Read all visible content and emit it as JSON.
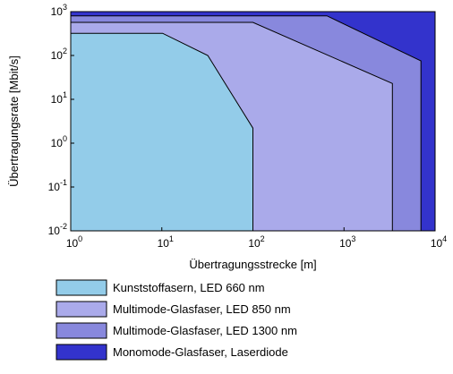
{
  "chart_data": {
    "type": "area",
    "xlabel": "Übertragungsstrecke [m]",
    "ylabel": "Übertragungsrate [Mbit/s]",
    "x_scale": "log",
    "y_scale": "log",
    "xlim": [
      1,
      10000
    ],
    "ylim": [
      0.01,
      1000
    ],
    "x_ticks": [
      {
        "value": 1,
        "base": "10",
        "exp": "0"
      },
      {
        "value": 10,
        "base": "10",
        "exp": "1"
      },
      {
        "value": 100,
        "base": "10",
        "exp": "2"
      },
      {
        "value": 1000,
        "base": "10",
        "exp": "3"
      },
      {
        "value": 10000,
        "base": "10",
        "exp": "4"
      }
    ],
    "y_ticks": [
      {
        "value": 0.01,
        "base": "10",
        "exp": "-2"
      },
      {
        "value": 0.1,
        "base": "10",
        "exp": "-1"
      },
      {
        "value": 1,
        "base": "10",
        "exp": "0"
      },
      {
        "value": 10,
        "base": "10",
        "exp": "1"
      },
      {
        "value": 100,
        "base": "10",
        "exp": "2"
      },
      {
        "value": 1000,
        "base": "10",
        "exp": "3"
      }
    ],
    "grid": false,
    "legend_position": "bottom",
    "series": [
      {
        "name": "Monomode-Glasfaser, Laserdiode",
        "color": "#3333cc",
        "boundary": [
          [
            1,
            0.01
          ],
          [
            1,
            1000
          ],
          [
            10000,
            1000
          ],
          [
            10000,
            0.01
          ]
        ]
      },
      {
        "name": "Multimode-Glasfaser, LED 1300 nm",
        "color": "#8888dd",
        "boundary": [
          [
            1,
            0.01
          ],
          [
            1,
            800
          ],
          [
            650,
            800
          ],
          [
            7000,
            75
          ],
          [
            7000,
            0.01
          ]
        ]
      },
      {
        "name": "Multimode-Glasfaser, LED 850 nm",
        "color": "#aaaaea",
        "boundary": [
          [
            1,
            0.01
          ],
          [
            1,
            570
          ],
          [
            100,
            570
          ],
          [
            3400,
            23
          ],
          [
            3400,
            0.01
          ]
        ]
      },
      {
        "name": "Kunststoffasern, LED 660 nm",
        "color": "#93cce9",
        "boundary": [
          [
            1,
            0.01
          ],
          [
            1,
            320
          ],
          [
            10.2,
            320
          ],
          [
            32,
            100
          ],
          [
            100,
            2.2
          ],
          [
            100,
            0.01
          ]
        ]
      }
    ]
  }
}
